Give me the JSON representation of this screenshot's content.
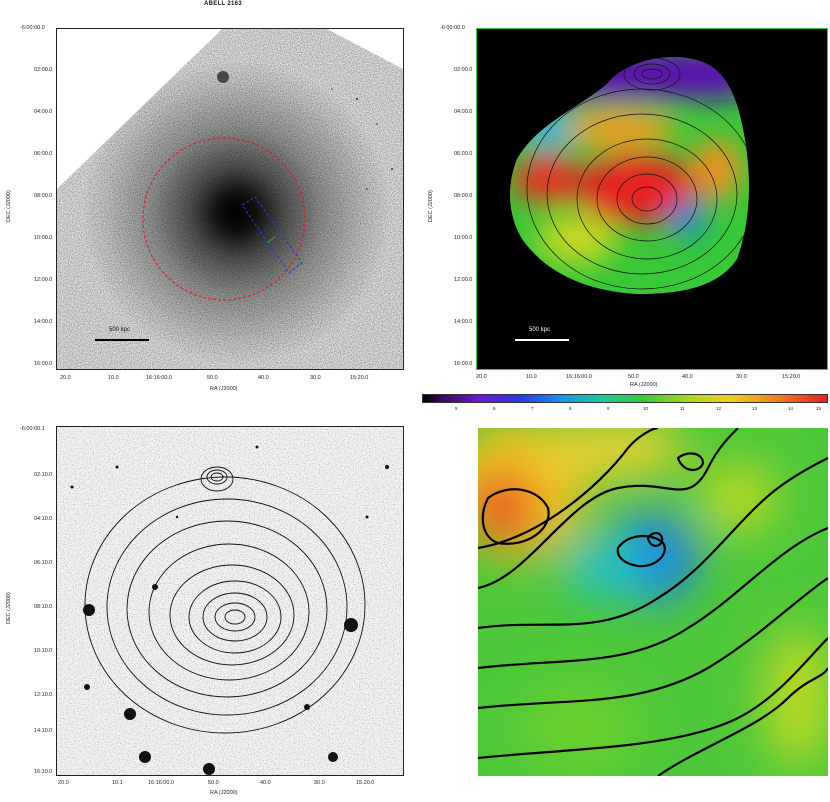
{
  "title": "ABELL 2163",
  "top_left": {
    "xlabel": "RA (J2000)",
    "ylabel": "DEC (J2000)",
    "x_ticks": [
      "20.0",
      "10.0",
      "16:16:00.0",
      "50.0",
      "40.0",
      "30.0",
      "15:20.0"
    ],
    "y_ticks": [
      "-6:00:00.0",
      "02:00.0",
      "04:00.0",
      "06:00.0",
      "08:00.0",
      "10:00.0",
      "12:00.0",
      "14:00.0",
      "16:00.0"
    ],
    "scale_label": "500 kpc",
    "circle_color": "#e0202a",
    "box_color": "#2a3ad0"
  },
  "top_right": {
    "xlabel": "RA (J2000)",
    "ylabel": "DEC (J2000)",
    "x_ticks": [
      "20.0",
      "10.0",
      "16:16:00.0",
      "50.0",
      "40.0",
      "30.0",
      "15:20.0"
    ],
    "y_ticks": [
      "-6:00:00.0",
      "02:00.0",
      "04:00.0",
      "06:00.0",
      "08:00.0",
      "10:00.0",
      "12:00.0",
      "14:00.0",
      "16:00.0"
    ],
    "scale_label": "500 kpc",
    "tick_color": "#38c838"
  },
  "colorbar": {
    "ticks": [
      "5",
      "6",
      "7",
      "8",
      "9",
      "10",
      "11",
      "12",
      "13",
      "14",
      "15"
    ]
  },
  "bottom_left": {
    "xlabel": "RA (J2000)",
    "ylabel": "DEC (J2000)",
    "x_ticks": [
      "20.0",
      "10.1",
      "16:16:00.0",
      "50.0",
      "40.0",
      "30.0",
      "15:20.0"
    ],
    "y_ticks": [
      "-6:00:00.1",
      "02:10.0",
      "04:10.0",
      "06:10.0",
      "08:10.0",
      "10:10.0",
      "12:10.0",
      "14:10.0",
      "16:10.0"
    ]
  }
}
